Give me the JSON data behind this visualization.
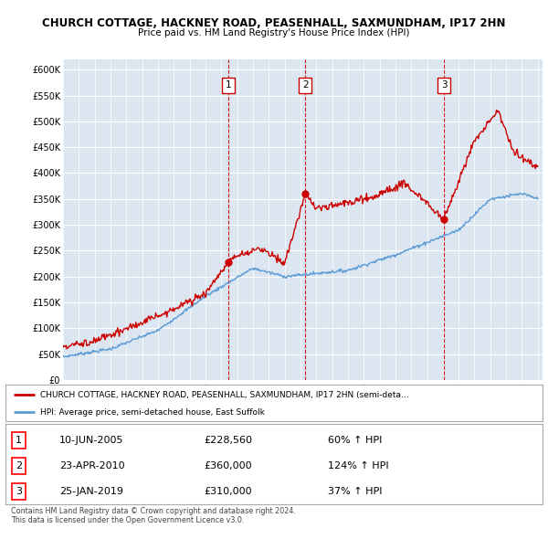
{
  "title": "CHURCH COTTAGE, HACKNEY ROAD, PEASENHALL, SAXMUNDHAM, IP17 2HN",
  "subtitle": "Price paid vs. HM Land Registry's House Price Index (HPI)",
  "ylim": [
    0,
    620000
  ],
  "xlim_start": 1995.0,
  "xlim_end": 2025.0,
  "transaction_dates": [
    2005.44,
    2010.31,
    2019.07
  ],
  "transaction_prices": [
    228560,
    360000,
    310000
  ],
  "transaction_labels": [
    "1",
    "2",
    "3"
  ],
  "legend_entries": [
    "CHURCH COTTAGE, HACKNEY ROAD, PEASENHALL, SAXMUNDHAM, IP17 2HN (semi-deta…",
    "HPI: Average price, semi-detached house, East Suffolk"
  ],
  "table_rows": [
    {
      "num": "1",
      "date": "10-JUN-2005",
      "price": "£228,560",
      "change": "60% ↑ HPI"
    },
    {
      "num": "2",
      "date": "23-APR-2010",
      "price": "£360,000",
      "change": "124% ↑ HPI"
    },
    {
      "num": "3",
      "date": "25-JAN-2019",
      "price": "£310,000",
      "change": "37% ↑ HPI"
    }
  ],
  "footer": "Contains HM Land Registry data © Crown copyright and database right 2024.\nThis data is licensed under the Open Government Licence v3.0.",
  "bg_color": "#dce6f1",
  "line_color_red": "#cc0000",
  "line_color_blue": "#5b9bd5",
  "grid_color": "#ffffff",
  "dashed_line_color": "#cc0000"
}
